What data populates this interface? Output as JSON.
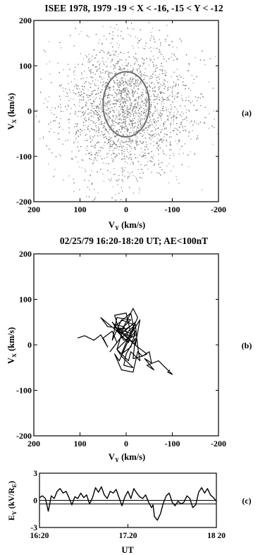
{
  "chart_data": [
    {
      "panel": "(a)",
      "type": "scatter",
      "title": "ISEE 1978, 1979  -19 < X < -16,  -15 < Y < -12",
      "xlabel": "V",
      "xlabel_sub": "Y",
      "xlabel_unit": " (km/s)",
      "ylabel": "V",
      "ylabel_sub": "X",
      "ylabel_unit": " (km/s)",
      "xlim": [
        200,
        -200
      ],
      "ylim": [
        -200,
        200
      ],
      "x_ticks": [
        200,
        100,
        0,
        -100,
        -200
      ],
      "x_tick_labels": [
        "200",
        "100",
        "0",
        "-100",
        "-200"
      ],
      "y_ticks": [
        200,
        100,
        0,
        -100,
        -200
      ],
      "y_tick_labels": [
        "200",
        "100",
        "0",
        "-100",
        "-200"
      ],
      "scatter": {
        "n_points": 4200,
        "center": [
          0,
          5
        ],
        "spread": [
          60,
          65
        ]
      },
      "ellipse": {
        "center": [
          0,
          15
        ],
        "radius_x": 50,
        "radius_y": 72,
        "color": "#6e6e6e"
      }
    },
    {
      "panel": "(b)",
      "type": "line",
      "title": "02/25/79 16:20-18:20 UT; AE<100nT",
      "xlabel": "V",
      "xlabel_sub": "Y",
      "xlabel_unit": " (km/s)",
      "ylabel": "V",
      "ylabel_sub": "X",
      "ylabel_unit": " (km/s)",
      "xlim": [
        200,
        -200
      ],
      "ylim": [
        -200,
        200
      ],
      "x_ticks": [
        200,
        100,
        0,
        -100,
        -200
      ],
      "x_tick_labels": [
        "200",
        "100",
        "0",
        "-100",
        "-200"
      ],
      "y_ticks": [
        200,
        100,
        0,
        -100,
        -200
      ],
      "y_tick_labels": [
        "200",
        "100",
        "0",
        "-100",
        "-200"
      ],
      "trajectory": {
        "x": [
          105,
          90,
          70,
          55,
          40,
          50,
          30,
          20,
          35,
          10,
          25,
          5,
          -5,
          15,
          -10,
          20,
          30,
          10,
          -15,
          0,
          40,
          55,
          20,
          -5,
          -20,
          10,
          25,
          -10,
          -20,
          5,
          30,
          15,
          -25,
          -20,
          10,
          25,
          0,
          -10,
          15,
          -20,
          -30,
          -5,
          20,
          5,
          -15,
          -25,
          0,
          10,
          -10,
          -20,
          -5,
          15,
          25,
          10,
          -15,
          -25,
          -35,
          -15,
          -20,
          0,
          5,
          -15,
          10,
          20,
          -5,
          -10,
          -30,
          -25,
          -45,
          -35,
          -50,
          -55,
          -40,
          -60,
          -45,
          -70,
          -85,
          -100,
          -90,
          -95
        ],
        "y": [
          15,
          20,
          10,
          22,
          -5,
          15,
          30,
          5,
          -15,
          18,
          45,
          40,
          20,
          30,
          55,
          60,
          10,
          55,
          45,
          35,
          40,
          60,
          30,
          5,
          50,
          25,
          40,
          70,
          20,
          10,
          50,
          30,
          -5,
          45,
          15,
          65,
          70,
          25,
          35,
          0,
          55,
          15,
          -10,
          40,
          80,
          60,
          5,
          -20,
          -5,
          30,
          10,
          -35,
          -20,
          -55,
          -60,
          -15,
          -25,
          -30,
          15,
          -20,
          -45,
          -50,
          -25,
          -10,
          -35,
          -15,
          -35,
          -5,
          -20,
          -25,
          -15,
          -40,
          -30,
          -55,
          -45,
          -35,
          -50,
          -65,
          -60,
          -55
        ]
      }
    },
    {
      "panel": "(c)",
      "type": "line",
      "ylabel": "E",
      "ylabel_sub": "Y",
      "ylabel_unit": " (kV/R",
      "ylabel_unit_sub": "E",
      "ylabel_close": ")",
      "xlabel": "UT",
      "xlim": [
        0,
        120
      ],
      "ylim": [
        -3,
        3
      ],
      "x_ticks": [
        0,
        60,
        120
      ],
      "x_tick_labels": [
        "16:20",
        "17.20",
        "18 20"
      ],
      "y_ticks": [
        3,
        0,
        -3
      ],
      "y_tick_labels": [
        "3",
        "0",
        "-3"
      ],
      "reference_lines": [
        0,
        -0.4
      ],
      "series": [
        {
          "x": [
            0,
            2,
            4,
            5,
            6,
            7,
            8,
            10,
            12,
            14,
            16,
            18,
            20,
            22,
            24,
            26,
            28,
            30,
            32,
            34,
            36,
            38,
            40,
            42,
            44,
            46,
            48,
            50,
            52,
            54,
            56,
            58,
            60,
            62,
            64,
            66,
            68,
            70,
            72,
            74,
            76,
            77,
            78,
            80,
            82,
            84,
            86,
            88,
            90,
            92,
            94,
            96,
            98,
            100,
            102,
            104,
            106,
            108,
            110,
            112,
            114,
            116,
            118,
            120
          ],
          "y": [
            0.3,
            0.5,
            0.2,
            -0.5,
            -1.2,
            -0.4,
            0.5,
            0.2,
            1.0,
            1.3,
            0.8,
            1.0,
            0.3,
            -0.5,
            0.4,
            0.2,
            0.8,
            0.3,
            0.6,
            -0.4,
            0.3,
            1.4,
            0.9,
            1.5,
            0.6,
            0.2,
            1.0,
            0.8,
            1.2,
            0.3,
            -0.6,
            0.4,
            1.0,
            0.2,
            1.3,
            0.8,
            0.4,
            0.2,
            0.6,
            -0.2,
            -0.8,
            -0.5,
            -1.8,
            -2.2,
            -1.5,
            -0.3,
            0.5,
            0.8,
            -0.2,
            -0.6,
            -0.1,
            -0.4,
            -0.2,
            0.5,
            0.2,
            -0.8,
            -0.5,
            0.9,
            1.4,
            0.8,
            1.3,
            0.6,
            0.3,
            -0.1
          ]
        }
      ]
    }
  ],
  "labels": {
    "panel_a": "(a)",
    "panel_b": "(b)",
    "panel_c": "(c)"
  }
}
